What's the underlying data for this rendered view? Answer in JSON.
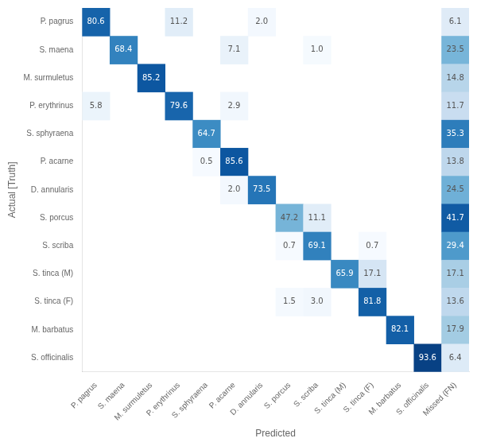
{
  "chart_data": {
    "type": "heatmap",
    "xlabel": "Predicted",
    "ylabel": "Actual [Truth]",
    "categories": [
      "P. pagrus",
      "S. maena",
      "M. surmuletus",
      "P. erythrinus",
      "S. sphyraena",
      "P. acarne",
      "D. annularis",
      "S. porcus",
      "S. scriba",
      "S. tinca (M)",
      "S. tinca (F)",
      "M. barbatus",
      "S. officinalis"
    ],
    "values": [
      [
        80.6,
        null,
        null,
        11.2,
        null,
        null,
        2.0,
        null,
        null,
        null,
        null,
        null,
        null
      ],
      [
        null,
        68.4,
        null,
        null,
        null,
        7.1,
        null,
        null,
        1.0,
        null,
        null,
        null,
        null
      ],
      [
        null,
        null,
        85.2,
        null,
        null,
        null,
        null,
        null,
        null,
        null,
        null,
        null,
        null
      ],
      [
        5.8,
        null,
        null,
        79.6,
        null,
        2.9,
        null,
        null,
        null,
        null,
        null,
        null,
        null
      ],
      [
        null,
        null,
        null,
        null,
        64.7,
        null,
        null,
        null,
        null,
        null,
        null,
        null,
        null
      ],
      [
        null,
        null,
        null,
        null,
        0.5,
        85.6,
        null,
        null,
        null,
        null,
        null,
        null,
        null
      ],
      [
        null,
        null,
        null,
        null,
        null,
        2.0,
        73.5,
        null,
        null,
        null,
        null,
        null,
        null
      ],
      [
        null,
        null,
        null,
        null,
        null,
        null,
        null,
        47.2,
        11.1,
        null,
        null,
        null,
        null
      ],
      [
        null,
        null,
        null,
        null,
        null,
        null,
        null,
        0.7,
        69.1,
        null,
        0.7,
        null,
        null
      ],
      [
        null,
        null,
        null,
        null,
        null,
        null,
        null,
        null,
        null,
        65.9,
        17.1,
        null,
        null
      ],
      [
        null,
        null,
        null,
        null,
        null,
        null,
        null,
        1.5,
        3.0,
        null,
        81.8,
        null,
        null
      ],
      [
        null,
        null,
        null,
        null,
        null,
        null,
        null,
        null,
        null,
        null,
        null,
        82.1,
        null
      ],
      [
        null,
        null,
        null,
        null,
        null,
        null,
        null,
        null,
        null,
        null,
        null,
        null,
        93.6
      ]
    ],
    "value_labels": [
      [
        "80.6",
        null,
        null,
        "11.2",
        null,
        null,
        "2.0",
        null,
        null,
        null,
        null,
        null,
        null
      ],
      [
        null,
        "68.4",
        null,
        null,
        null,
        "7.1",
        null,
        null,
        "1.0",
        null,
        null,
        null,
        null
      ],
      [
        null,
        null,
        "85.2",
        null,
        null,
        null,
        null,
        null,
        null,
        null,
        null,
        null,
        null
      ],
      [
        "5.8",
        null,
        null,
        "79.6",
        null,
        "2.9",
        null,
        null,
        null,
        null,
        null,
        null,
        null
      ],
      [
        null,
        null,
        null,
        null,
        "64.7",
        null,
        null,
        null,
        null,
        null,
        null,
        null,
        null
      ],
      [
        null,
        null,
        null,
        null,
        "0.5",
        "85.6",
        null,
        null,
        null,
        null,
        null,
        null,
        null
      ],
      [
        null,
        null,
        null,
        null,
        null,
        "2.0",
        "73.5",
        null,
        null,
        null,
        null,
        null,
        null
      ],
      [
        null,
        null,
        null,
        null,
        null,
        null,
        null,
        "47.2",
        "11.1",
        null,
        null,
        null,
        null
      ],
      [
        null,
        null,
        null,
        null,
        null,
        null,
        null,
        "0.7",
        "69.1",
        null,
        "0.7",
        null,
        null
      ],
      [
        null,
        null,
        null,
        null,
        null,
        null,
        null,
        null,
        null,
        "65.9",
        "17.1",
        null,
        null
      ],
      [
        null,
        null,
        null,
        null,
        null,
        null,
        null,
        "1.5",
        "3.0",
        null,
        "81.8",
        null,
        null
      ],
      [
        null,
        null,
        null,
        null,
        null,
        null,
        null,
        null,
        null,
        null,
        null,
        "82.1",
        null
      ],
      [
        null,
        null,
        null,
        null,
        null,
        null,
        null,
        null,
        null,
        null,
        null,
        null,
        "93.6"
      ]
    ],
    "color_range": [
      0,
      100
    ],
    "missed_label": "Missed (FN)",
    "missed_values": [
      6.1,
      23.5,
      14.8,
      11.7,
      35.3,
      13.8,
      24.5,
      41.7,
      29.4,
      17.1,
      13.6,
      17.9,
      6.4
    ],
    "missed_color_range": [
      0,
      50
    ],
    "data_labels": true,
    "grid": false
  }
}
